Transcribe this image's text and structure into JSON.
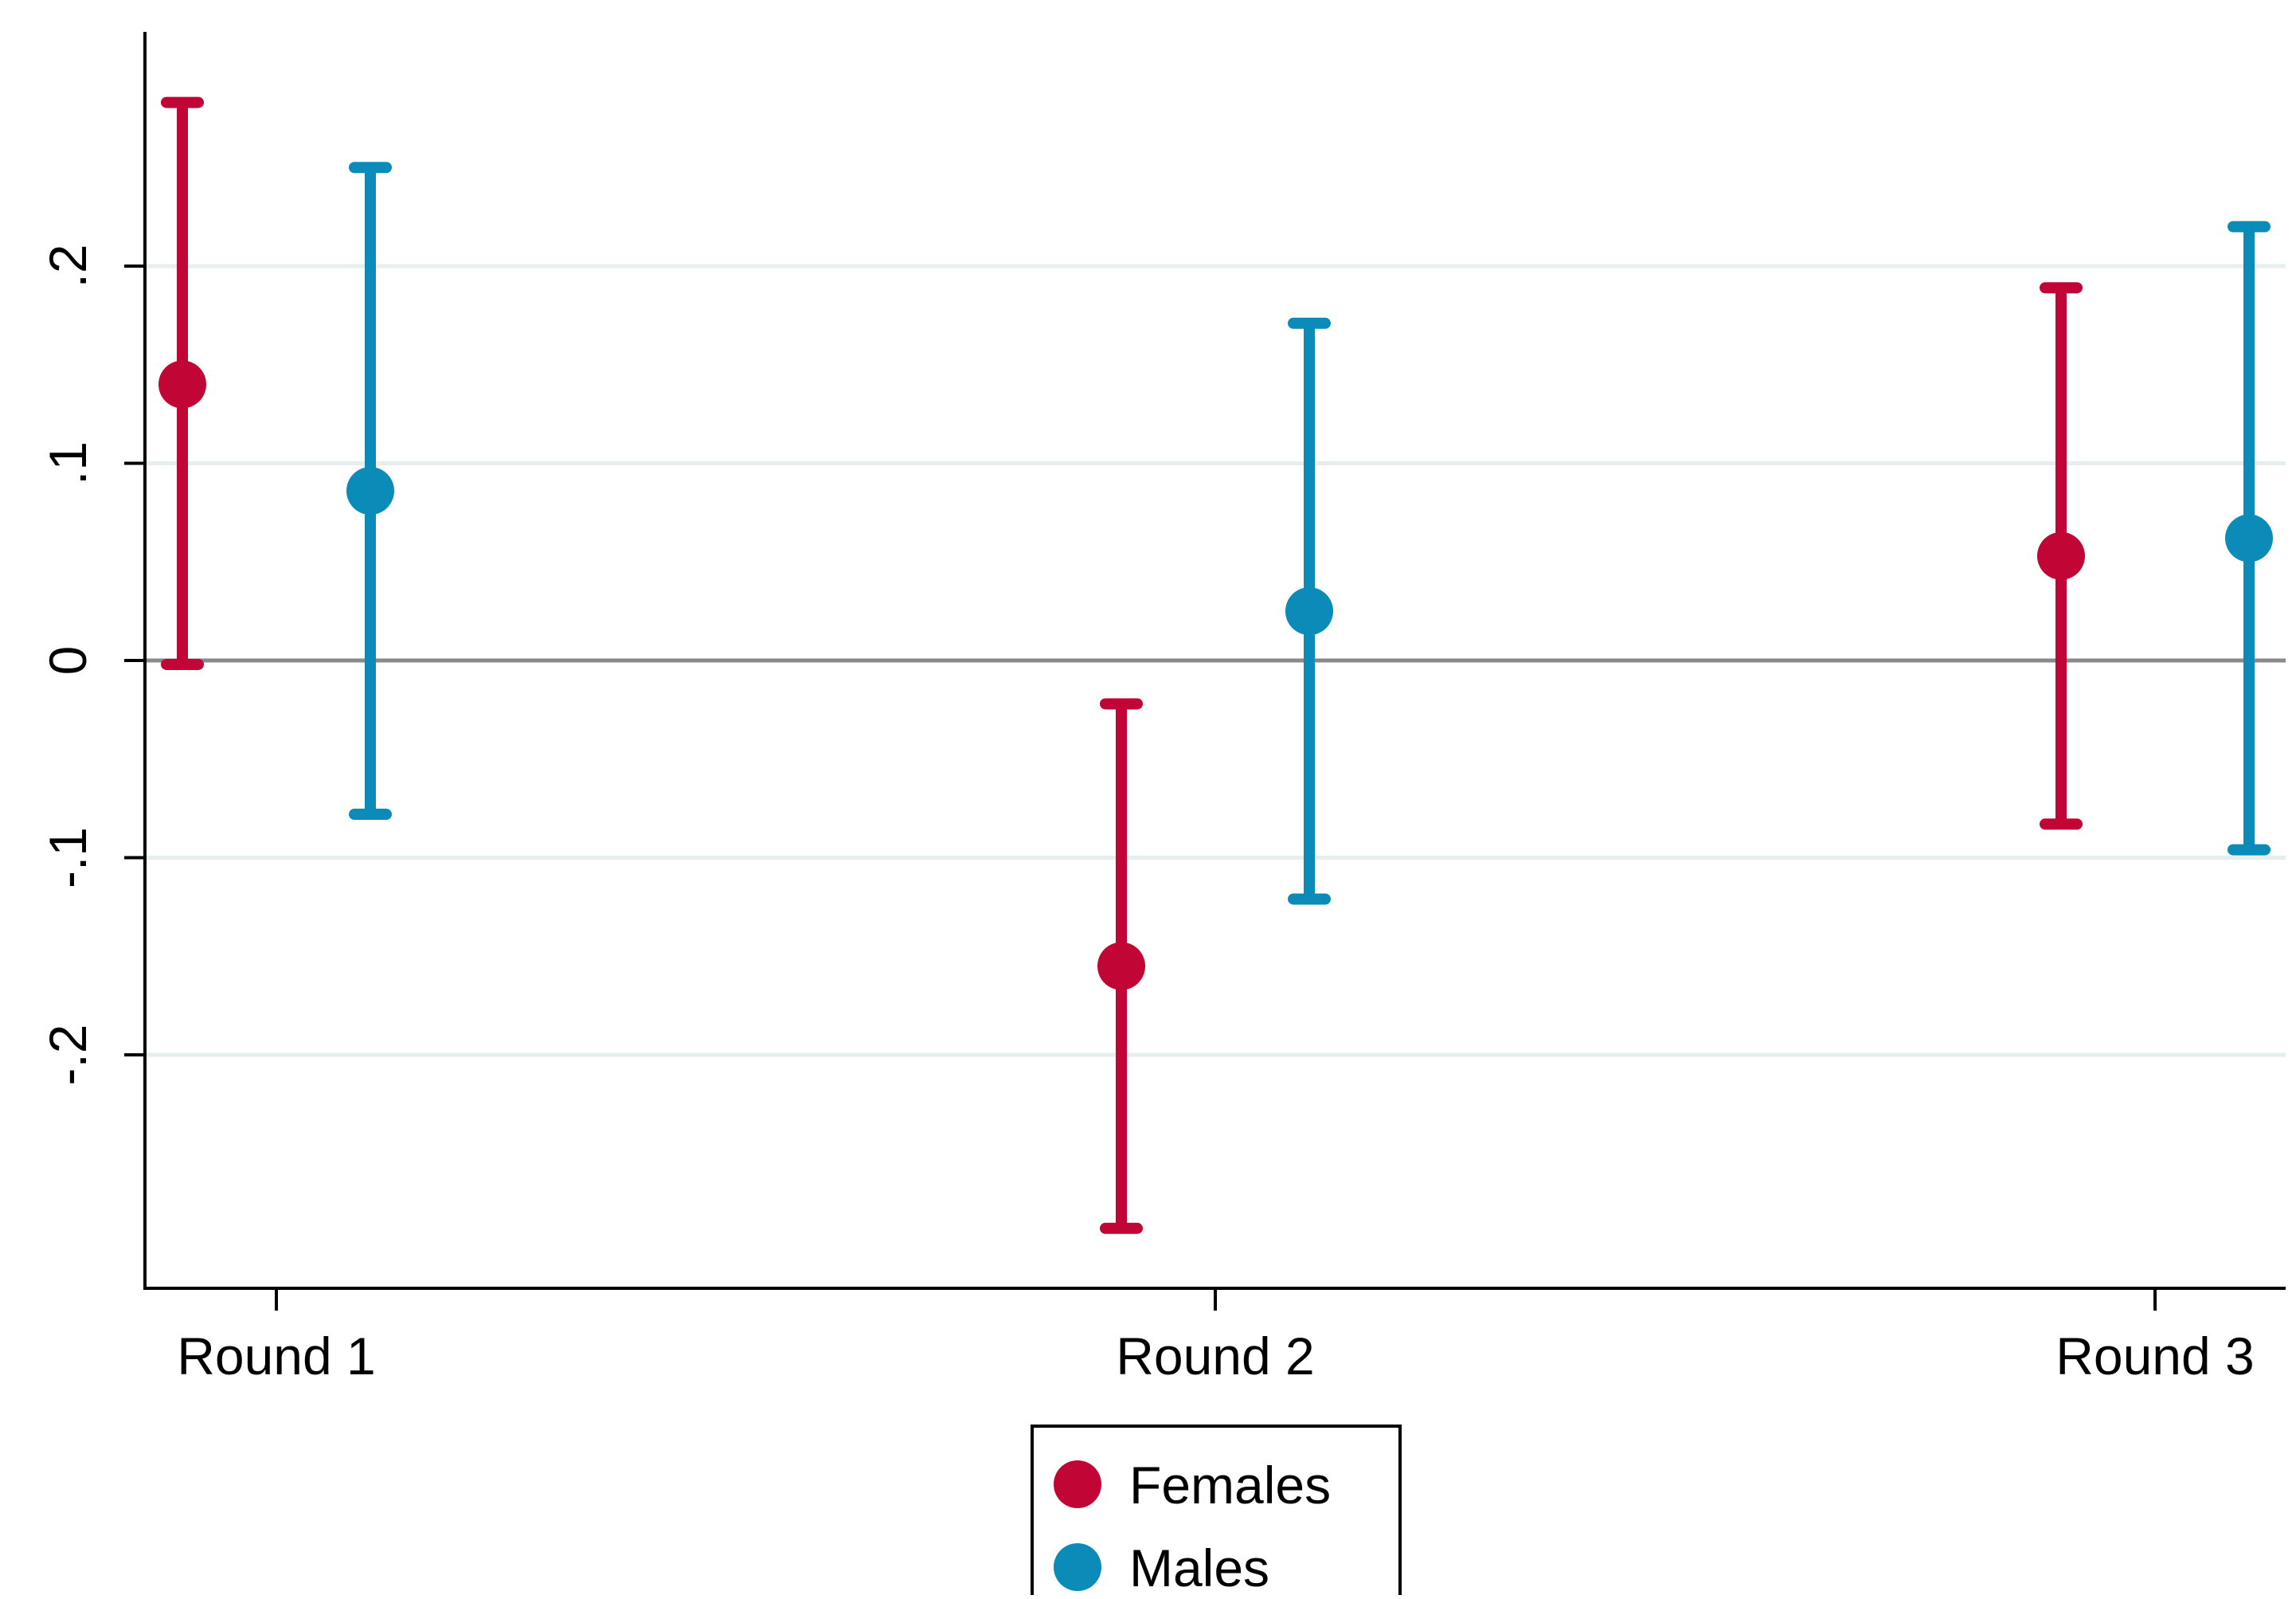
{
  "chart_data": {
    "type": "scatter",
    "subtype": "point estimates with confidence intervals",
    "title": "",
    "xlabel": "",
    "ylabel": "",
    "categories": [
      "Round 1",
      "Round 2",
      "Round 3"
    ],
    "y_ticks": [
      ".2",
      ".1",
      "0",
      "-.1",
      "-.2"
    ],
    "y_tick_values": [
      0.2,
      0.1,
      0,
      -0.1,
      -0.2
    ],
    "ylim": [
      -0.32,
      0.32
    ],
    "grid": true,
    "reference_line": 0,
    "legend": {
      "placement": "bottom-center",
      "entries": [
        "Females",
        "Males"
      ]
    },
    "series": [
      {
        "name": "Females",
        "color": "#c10534",
        "points": [
          {
            "category": "Round 1",
            "estimate": 0.14,
            "lower": -0.002,
            "upper": 0.283
          },
          {
            "category": "Round 2",
            "estimate": -0.155,
            "lower": -0.288,
            "upper": -0.022
          },
          {
            "category": "Round 3",
            "estimate": 0.053,
            "lower": -0.083,
            "upper": 0.189
          }
        ]
      },
      {
        "name": "Males",
        "color": "#0a8bb8",
        "points": [
          {
            "category": "Round 1",
            "estimate": 0.086,
            "lower": -0.078,
            "upper": 0.25
          },
          {
            "category": "Round 2",
            "estimate": 0.025,
            "lower": -0.121,
            "upper": 0.171
          },
          {
            "category": "Round 3",
            "estimate": 0.062,
            "lower": -0.096,
            "upper": 0.22
          }
        ]
      }
    ],
    "colors": {
      "grid": "#e6efee",
      "zero_line": "#8a8a8a",
      "axis": "#000000"
    }
  }
}
